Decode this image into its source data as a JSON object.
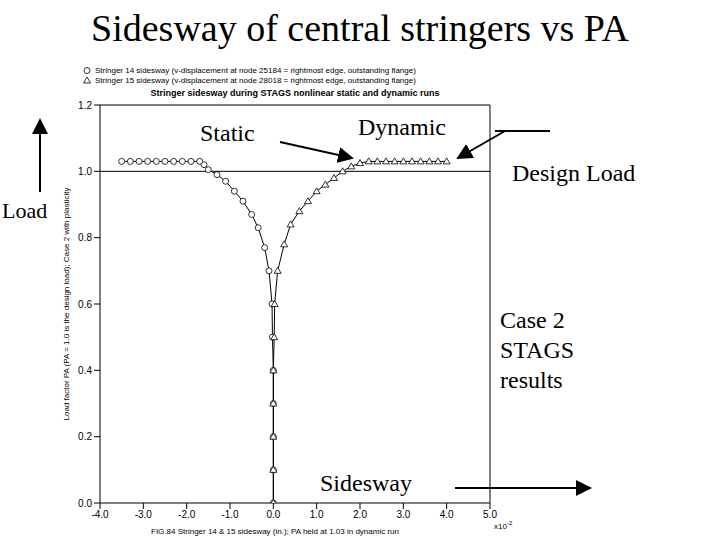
{
  "slide": {
    "title": "Sidesway of central stringers vs PA",
    "annotations": {
      "static": "Static",
      "dynamic": "Dynamic",
      "load": "Load",
      "case": [
        "Case 2",
        "STAGS",
        "results"
      ],
      "sidesway": "Sidesway"
    }
  },
  "chart_data": {
    "type": "line",
    "title": "Stringer sidesway during STAGS nonlinear static and dynamic runs",
    "x_label": "FIG.84 Stringer 14 & 15 sidesway (in.); PA held at 1.03 in dynamic run",
    "x_multiplier": {
      "base": "x10",
      "exponent": "-2"
    },
    "y_label": "Load factor PA (PA = 1.0 is the design load); Case 2 with plasticity",
    "reference_line": {
      "text": "Design Load",
      "value": 1.0
    },
    "xlim": [
      -4,
      5
    ],
    "xticks": [
      {
        "value": -4,
        "label": "-4.0"
      },
      {
        "value": -3,
        "label": "-3.0"
      },
      {
        "value": -2,
        "label": "-2.0"
      },
      {
        "value": -1,
        "label": "-1.0"
      },
      {
        "value": 0,
        "label": "0.0"
      },
      {
        "value": 1,
        "label": "1.0"
      },
      {
        "value": 2,
        "label": "2.0"
      },
      {
        "value": 3,
        "label": "3.0"
      },
      {
        "value": 4,
        "label": "4.0"
      },
      {
        "value": 5,
        "label": "5.0"
      }
    ],
    "ylim": [
      0,
      1.2
    ],
    "yticks": [
      {
        "value": 0,
        "label": "0.0"
      },
      0.2,
      0.4,
      0.6,
      0.8,
      {
        "value": 1,
        "label": "1.0"
      },
      1.2
    ],
    "grid": false,
    "series": [
      {
        "name": "Stringer 14 sidesway (v-displacement at node 25184 = rightmost edge, outstanding flange)",
        "color": "#000000",
        "marker": "circle",
        "x": [
          0,
          0,
          0,
          0,
          0,
          -0.02,
          -0.03,
          -0.1,
          -0.2,
          -0.35,
          -0.5,
          -0.7,
          -0.9,
          -1.1,
          -1.3,
          -1.5,
          -1.6,
          -1.7,
          -1.9,
          -2.1,
          -2.3,
          -2.5,
          -2.7,
          -2.9,
          -3.1,
          -3.3,
          -3.5
        ],
        "values": [
          0,
          0.1,
          0.2,
          0.3,
          0.4,
          0.5,
          0.6,
          0.7,
          0.77,
          0.83,
          0.87,
          0.91,
          0.94,
          0.97,
          0.99,
          1.005,
          1.02,
          1.03,
          1.03,
          1.03,
          1.03,
          1.03,
          1.03,
          1.03,
          1.03,
          1.03,
          1.03
        ]
      },
      {
        "name": "Stringer 15 sidesway (v-displacement at node 28018 = rightmost edge, outstanding flange)",
        "color": "#000000",
        "marker": "triangle",
        "x": [
          0,
          0,
          0,
          0,
          0,
          0.02,
          0.03,
          0.1,
          0.25,
          0.4,
          0.6,
          0.8,
          1.0,
          1.2,
          1.4,
          1.6,
          1.8,
          2.0,
          2.2,
          2.4,
          2.6,
          2.8,
          3.0,
          3.2,
          3.4,
          3.6,
          3.8,
          4.0
        ],
        "values": [
          0,
          0.1,
          0.2,
          0.3,
          0.4,
          0.5,
          0.6,
          0.7,
          0.78,
          0.84,
          0.88,
          0.91,
          0.94,
          0.96,
          0.98,
          1.0,
          1.015,
          1.025,
          1.03,
          1.03,
          1.03,
          1.03,
          1.03,
          1.03,
          1.03,
          1.03,
          1.03,
          1.03
        ]
      }
    ]
  }
}
